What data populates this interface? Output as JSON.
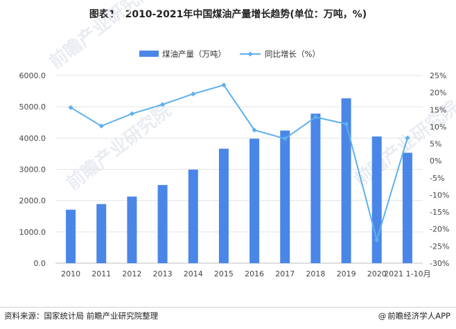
{
  "title": "图表1：2010-2021年中国煤油产量增长趋势(单位：万吨，%)",
  "source": "资料来源：国家统计局 前瞻产业研究院整理",
  "brand": "前瞻经济学人APP",
  "brand_symbol": "@",
  "watermarks": [
    "前瞻产业研究院",
    "前瞻产业研究院",
    "前瞻产业研究院"
  ],
  "colors": {
    "bar": "#4a86e8",
    "line": "#5eb0ec",
    "grid": "#e3e3e3",
    "text": "#444444"
  },
  "chart_data": {
    "type": "bar",
    "categories": [
      "2010",
      "2011",
      "2012",
      "2013",
      "2014",
      "2015",
      "2016",
      "2017",
      "2018",
      "2019",
      "2020",
      "2021 1-10月"
    ],
    "series": [
      {
        "name": "煤油产量（万吨）",
        "type": "bar",
        "axis": "left",
        "values": [
          1710,
          1890,
          2130,
          2500,
          2990,
          3660,
          3980,
          4240,
          4780,
          5270,
          4050,
          3530
        ]
      },
      {
        "name": "同比增长（%）",
        "type": "line",
        "axis": "right",
        "values": [
          15.6,
          10.2,
          13.8,
          16.5,
          19.6,
          22.2,
          9.0,
          6.5,
          12.8,
          10.8,
          -23.2,
          6.7
        ]
      }
    ],
    "y_left": {
      "min": 0,
      "max": 6000,
      "step": 1000,
      "ticks": [
        "0.0",
        "1000.0",
        "2000.0",
        "3000.0",
        "4000.0",
        "5000.0",
        "6000.0"
      ]
    },
    "y_right": {
      "min": -30,
      "max": 25,
      "step": 5,
      "ticks": [
        "-30%",
        "-25%",
        "-20%",
        "-15%",
        "-10%",
        "-5%",
        "0%",
        "5%",
        "10%",
        "15%",
        "20%",
        "25%"
      ]
    },
    "legend_position": "top-center",
    "grid": true
  }
}
